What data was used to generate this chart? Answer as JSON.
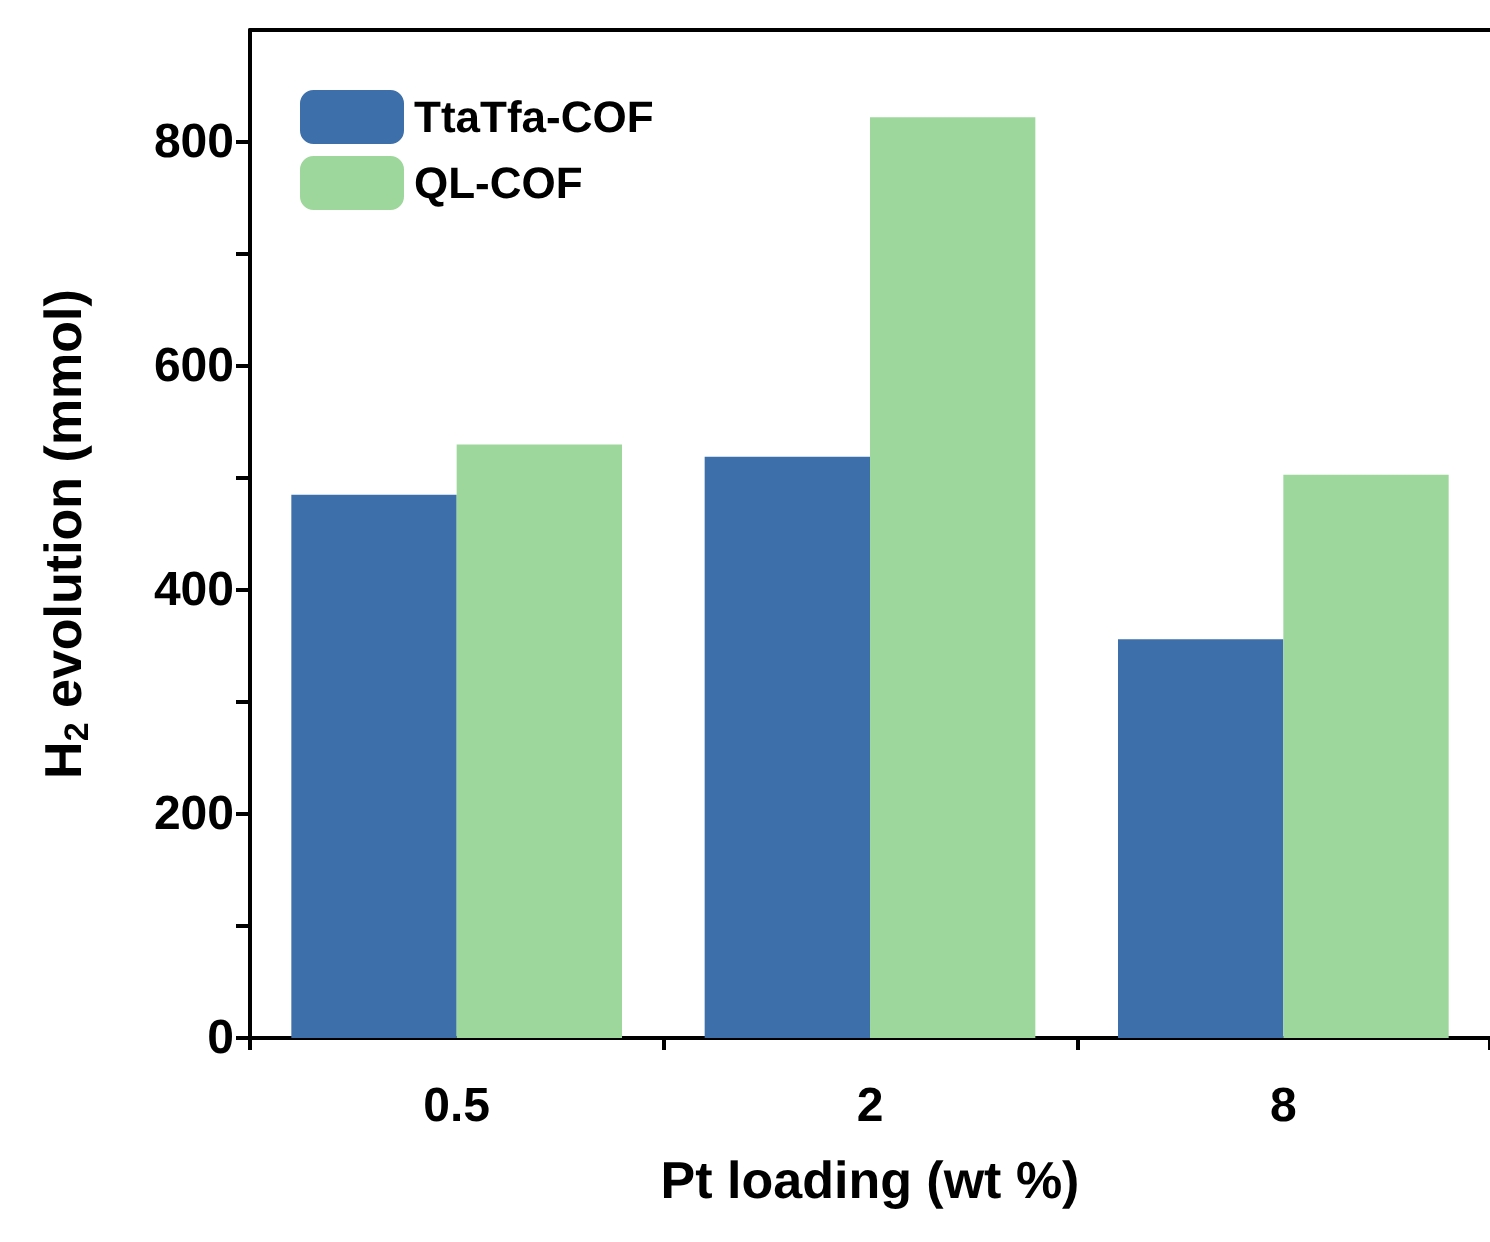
{
  "chart_data": {
    "type": "bar",
    "xlabel": "Pt loading (wt %)",
    "ylabel": "H$_{2}$ evolution (mmol)",
    "categories": [
      "0.5",
      "2",
      "8"
    ],
    "series": [
      {
        "name": "TtaTfa-COF",
        "color": "#3d6fab",
        "values": [
          485,
          519,
          356
        ]
      },
      {
        "name": "QL-COF",
        "color": "#9dd79b",
        "values": [
          530,
          822,
          503
        ]
      }
    ],
    "ylim": [
      0,
      900
    ],
    "yticks": [
      0,
      {
        "value": 100,
        "label": null
      },
      200,
      {
        "value": 300,
        "label": null
      },
      400,
      {
        "value": 500,
        "label": null
      },
      600,
      {
        "value": 700,
        "label": null
      },
      800
    ],
    "legend": "top left",
    "grid": false
  }
}
